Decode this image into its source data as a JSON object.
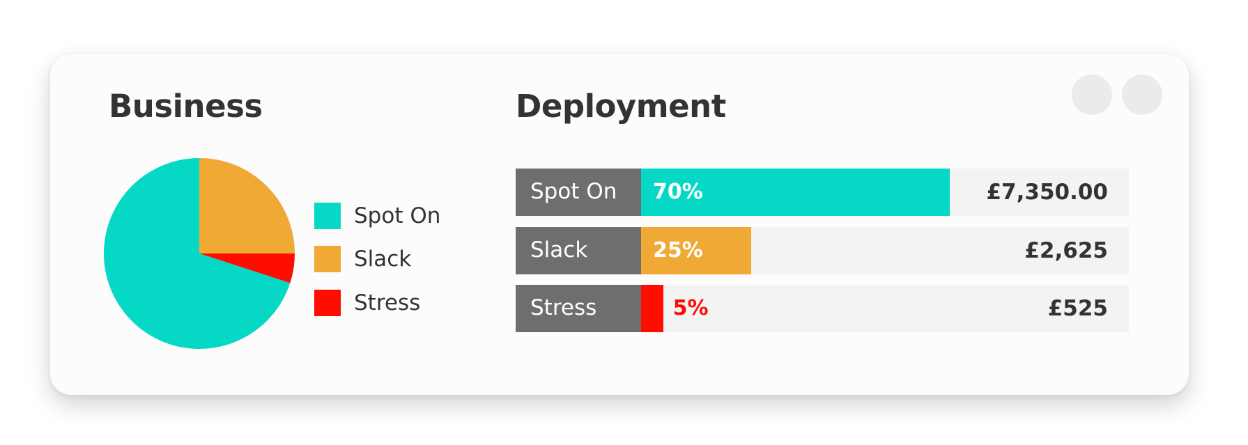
{
  "card": {
    "business_title": "Business",
    "deployment_title": "Deployment"
  },
  "chart_data": [
    {
      "type": "pie",
      "title": "Business",
      "categories": [
        "Spot On",
        "Slack",
        "Stress"
      ],
      "values": [
        70,
        25,
        5
      ],
      "colors": [
        "#06d8c6",
        "#f0a935",
        "#ff0d00"
      ],
      "legend": "right"
    },
    {
      "type": "bar",
      "orientation": "horizontal",
      "title": "Deployment",
      "categories": [
        "Spot On",
        "Slack",
        "Stress"
      ],
      "values": [
        70,
        25,
        5
      ],
      "data_labels": [
        "70%",
        "25%",
        "5%"
      ],
      "amounts": [
        "£7,350.00",
        "£2,625",
        "£525"
      ],
      "colors": [
        "#06d8c6",
        "#f0a935",
        "#ff0d00"
      ],
      "label_colors": [
        "#ffffff",
        "#ffffff",
        "#ff0d00"
      ],
      "xlim": [
        0,
        100
      ]
    }
  ]
}
